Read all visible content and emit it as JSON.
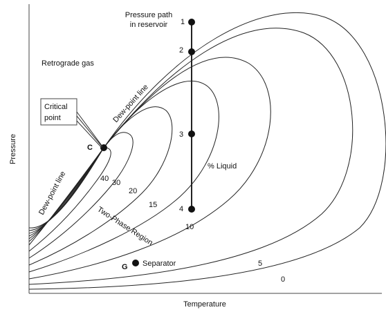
{
  "axes": {
    "x_label": "Temperature",
    "y_label": "Pressure"
  },
  "annotations": {
    "path": [
      "Pressure path",
      "in reservoir"
    ],
    "retrograde": "Retrograde gas",
    "dew_upper": "Dew-point line",
    "dew_lower": "Dew-point line",
    "critical": [
      "Critical",
      "point"
    ],
    "critical_symbol": "C",
    "liquid": "% Liquid",
    "two_phase": "Two-Phase Region",
    "separator": "Separator",
    "separator_symbol": "G"
  },
  "points": [
    "1",
    "2",
    "3",
    "4"
  ],
  "contours": [
    "0",
    "5",
    "10",
    "15",
    "20",
    "30",
    "40"
  ]
}
